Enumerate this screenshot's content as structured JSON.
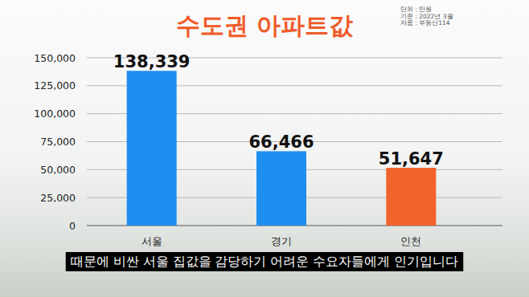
{
  "chart_data": {
    "type": "bar",
    "title": "수도권 아파트값",
    "annotations": [
      "단위 : 만원",
      "기준 : 2022년 3월",
      "자료 : 부동산114"
    ],
    "subtitle": "때문에 비싼 서울 집값을 감당하기 어려운 수요자들에게 인기입니다",
    "categories": [
      "서울",
      "경기",
      "인천"
    ],
    "values": [
      138339,
      66466,
      51647
    ],
    "value_labels": [
      "138,339",
      "66,466",
      "51,647"
    ],
    "colors": [
      "#1f8ef1",
      "#1f8ef1",
      "#f0642c"
    ],
    "ylim": [
      0,
      150000
    ],
    "yticks": [
      0,
      {
        "value": 25000,
        "label": "25,000"
      },
      {
        "value": 50000,
        "label": "50,000"
      },
      {
        "value": 75000,
        "label": "75,000"
      },
      {
        "value": 100000,
        "label": "100,000"
      },
      {
        "value": 125000,
        "label": "125,000"
      },
      {
        "value": 150000,
        "label": "150,000"
      }
    ],
    "grid": true,
    "data_labels": true
  }
}
